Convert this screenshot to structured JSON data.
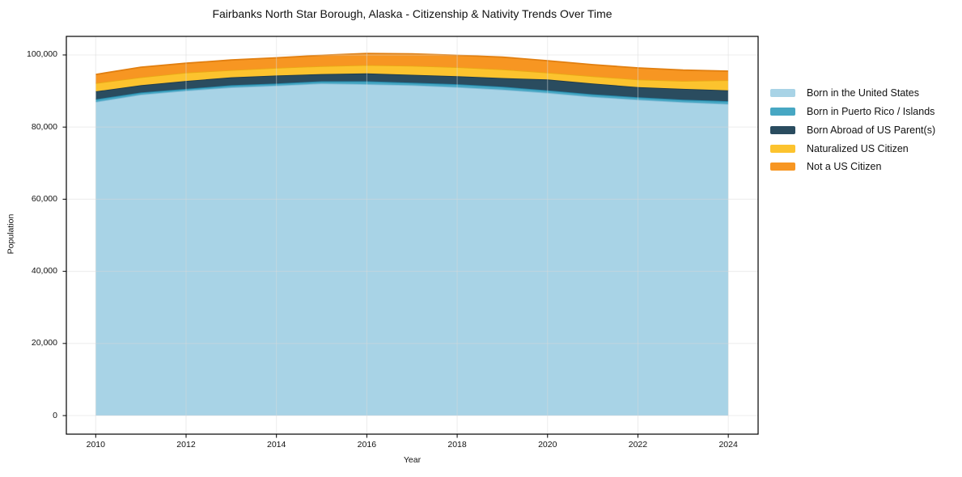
{
  "chart_data": {
    "type": "area",
    "stacked": true,
    "title": "Fairbanks North Star Borough, Alaska - Citizenship & Nativity Trends Over Time",
    "xlabel": "Year",
    "ylabel": "Population",
    "x": [
      2010,
      2011,
      2012,
      2013,
      2014,
      2015,
      2016,
      2017,
      2018,
      2019,
      2020,
      2021,
      2022,
      2023,
      2024
    ],
    "series": [
      {
        "name": "Born in the United States",
        "color": "#a8d3e6",
        "edge_color": "#85bdd8",
        "values": [
          87000,
          89000,
          90100,
          91000,
          91500,
          92100,
          91900,
          91600,
          91100,
          90400,
          89500,
          88400,
          87600,
          86900,
          86400
        ]
      },
      {
        "name": "Born in Puerto Rico / Islands",
        "color": "#47a7c3",
        "edge_color": "#2286a8",
        "values": [
          700,
          600,
          500,
          600,
          600,
          600,
          800,
          700,
          800,
          800,
          700,
          700,
          700,
          700,
          800
        ]
      },
      {
        "name": "Born Abroad of US Parent(s)",
        "color": "#2a4c5f",
        "edge_color": "#203b4a",
        "values": [
          2200,
          2000,
          2200,
          2200,
          2200,
          2000,
          2200,
          2200,
          2200,
          2400,
          3000,
          3000,
          2800,
          3000,
          3000
        ]
      },
      {
        "name": "Naturalized US Citizen",
        "color": "#fcc32e",
        "edge_color": "#eaa816",
        "values": [
          2300,
          2200,
          2300,
          2000,
          2100,
          2200,
          2300,
          2500,
          2500,
          2400,
          1900,
          2000,
          2100,
          2200,
          2800
        ]
      },
      {
        "name": "Not a US Citizen",
        "color": "#f79622",
        "edge_color": "#e17f10",
        "values": [
          2400,
          2800,
          2600,
          2800,
          2800,
          3000,
          3200,
          3300,
          3300,
          3400,
          3300,
          3200,
          3200,
          3000,
          2500
        ]
      }
    ],
    "totals": [
      94600,
      96600,
      97700,
      98600,
      99200,
      99900,
      100400,
      100300,
      99900,
      99400,
      98400,
      97300,
      96400,
      95800,
      95500
    ],
    "x_ticks": [
      2010,
      2012,
      2014,
      2016,
      2018,
      2020,
      2022,
      2024
    ],
    "y_ticks": [
      0,
      20000,
      40000,
      60000,
      80000,
      100000
    ],
    "y_tick_labels": [
      "0",
      "20,000",
      "40,000",
      "60,000",
      "80,000",
      "100,000"
    ],
    "xlim": [
      2009.35,
      2024.66
    ],
    "ylim": [
      -5150,
      105150
    ],
    "grid": true,
    "legend_position": "right",
    "colors": {
      "background": "#ffffff",
      "axis": "#000000",
      "gridline": "#d9d9d9",
      "text": "#111111"
    }
  }
}
